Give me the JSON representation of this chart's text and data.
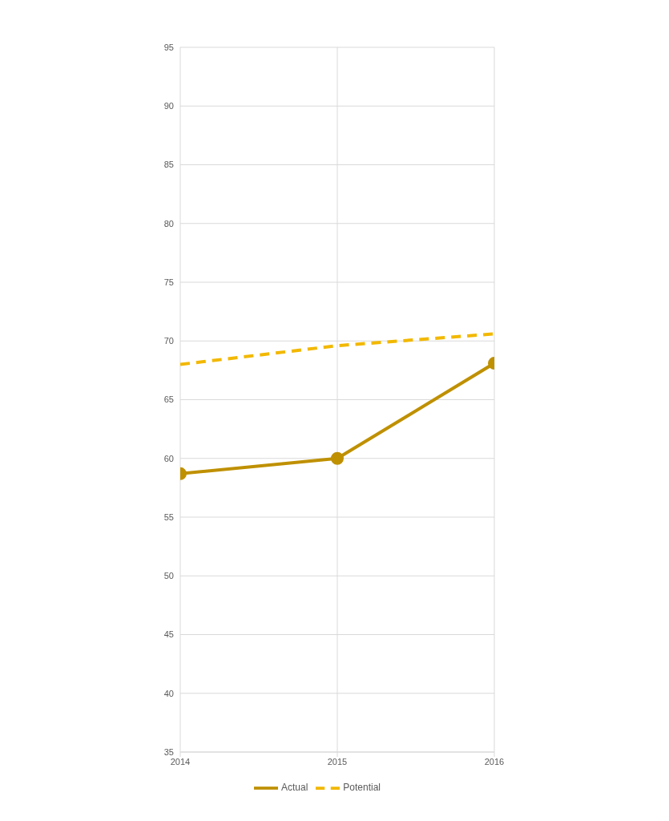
{
  "chart_data": {
    "type": "line",
    "x": [
      2014,
      2015,
      2016
    ],
    "series": [
      {
        "name": "Actual",
        "color": "#bf9000",
        "values": [
          58.7,
          60.0,
          68.1
        ],
        "marker": "circle",
        "line_style": "solid"
      },
      {
        "name": "Potential",
        "color": "#f2b800",
        "values": [
          68.0,
          69.6,
          70.6
        ],
        "marker": "none",
        "line_style": "dashed"
      }
    ],
    "xlim": [
      2014,
      2016
    ],
    "xticks": [
      2014,
      2015,
      2016
    ],
    "ylim": [
      35,
      95
    ],
    "yticks": [
      35,
      40,
      45,
      50,
      55,
      60,
      65,
      70,
      75,
      80,
      85,
      90,
      95
    ],
    "grid": true,
    "legend": "bottom"
  }
}
